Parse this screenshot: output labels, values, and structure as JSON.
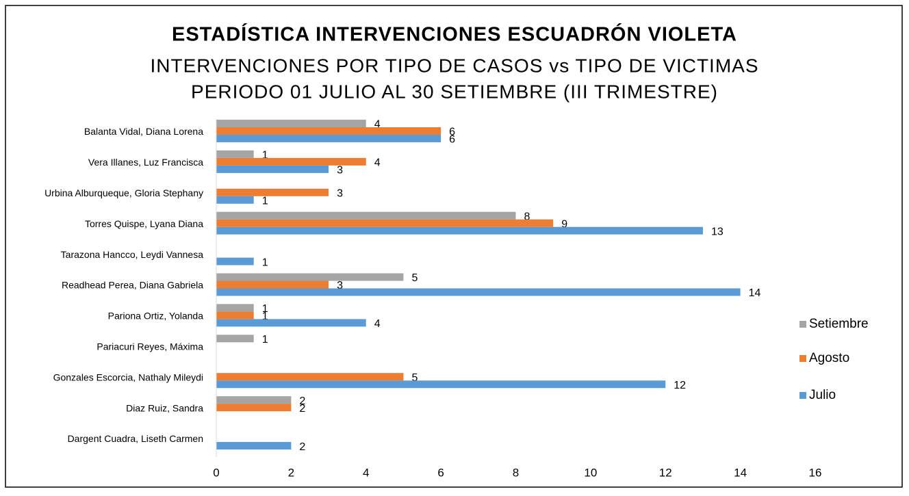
{
  "chart_data": {
    "type": "hbar",
    "title": "ESTADÍSTICA INTERVENCIONES ESCUADRÓN VIOLETA",
    "subtitles": [
      "INTERVENCIONES POR TIPO DE CASOS vs TIPO DE VICTIMAS",
      "PERIODO 01 JULIO AL 30 SETIEMBRE (III TRIMESTRE)"
    ],
    "categories": [
      "Balanta Vidal, Diana Lorena",
      "Vera Illanes, Luz Francisca",
      "Urbina Alburqueque, Gloria Stephany",
      "Torres Quispe, Lyana Diana",
      "Tarazona Hancco, Leydi Vannesa",
      "Readhead Perea, Diana Gabriela",
      "Pariona Ortiz, Yolanda",
      "Pariacuri Reyes, Máxima",
      "Gonzales Escorcia, Nathaly Mileydi",
      "Diaz Ruiz, Sandra",
      "Dargent Cuadra, Liseth Carmen"
    ],
    "series": [
      {
        "name": "Setiembre",
        "color": "#a5a5a5",
        "values": [
          4,
          1,
          null,
          8,
          null,
          5,
          1,
          1,
          null,
          2,
          null
        ]
      },
      {
        "name": "Agosto",
        "color": "#ed7d31",
        "values": [
          6,
          4,
          3,
          9,
          null,
          3,
          1,
          null,
          5,
          2,
          null
        ]
      },
      {
        "name": "Julio",
        "color": "#5b9bd5",
        "values": [
          6,
          3,
          1,
          13,
          1,
          14,
          4,
          null,
          12,
          null,
          2
        ]
      }
    ],
    "xlim": [
      0,
      16
    ],
    "xticks": [
      0,
      2,
      4,
      6,
      8,
      10,
      12,
      14,
      16
    ],
    "grid": false,
    "legend": "right"
  }
}
